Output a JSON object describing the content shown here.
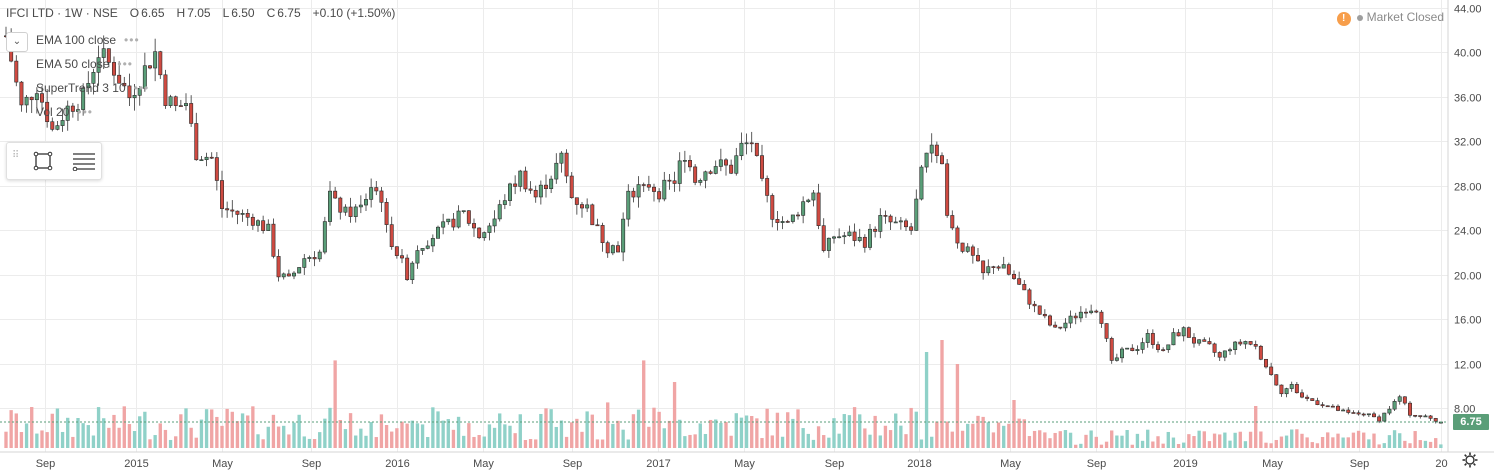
{
  "header": {
    "symbol": "IFCI LTD · 1W · NSE",
    "open_label": "O",
    "open": "6.65",
    "high_label": "H",
    "high": "7.05",
    "low_label": "L",
    "low": "6.50",
    "close_label": "C",
    "close": "6.75",
    "change": "+0.10 (+1.50%)"
  },
  "indicators": [
    {
      "label": "EMA 100 close"
    },
    {
      "label": "EMA 50 close"
    },
    {
      "label": "SuperTrend 3 10"
    },
    {
      "label": "Vol 20"
    }
  ],
  "status": {
    "warning_icon": "!",
    "text": "Market Closed"
  },
  "last_price_tag": "6.75",
  "colors": {
    "up": "#5a9e78",
    "down": "#cf4a41",
    "vol_up": "#8fd1c8",
    "vol_down": "#f0a5a5",
    "grid": "#ececec"
  },
  "icons": [
    "chevron-down-icon",
    "drag-grip-icon",
    "rectangle-tool-icon",
    "lines-tool-icon",
    "warning-icon",
    "settings-icon"
  ],
  "chart_data": {
    "type": "candlestick",
    "title": "IFCI LTD · 1W · NSE",
    "interval": "weekly",
    "y_ticks": [
      "44.00",
      "40.00",
      "36.00",
      "32.00",
      "28.00",
      "24.00",
      "20.00",
      "16.00",
      "12.00",
      "8.00"
    ],
    "ylim": [
      4.5,
      44
    ],
    "x_ticks": [
      "Sep",
      "2015",
      "May",
      "Sep",
      "2016",
      "May",
      "Sep",
      "2017",
      "May",
      "Sep",
      "2018",
      "May",
      "Sep",
      "2019",
      "May",
      "Sep",
      "20"
    ],
    "price_path": [
      [
        0,
        41.5
      ],
      [
        3,
        35
      ],
      [
        6,
        37
      ],
      [
        9,
        33
      ],
      [
        12,
        35
      ],
      [
        15,
        36
      ],
      [
        18,
        40
      ],
      [
        21,
        38.5
      ],
      [
        24,
        36
      ],
      [
        27,
        38.5
      ],
      [
        29,
        40
      ],
      [
        31,
        36
      ],
      [
        33,
        35
      ],
      [
        35,
        35.5
      ],
      [
        37,
        31
      ],
      [
        40,
        30.5
      ],
      [
        42,
        26
      ],
      [
        45,
        25.5
      ],
      [
        48,
        25
      ],
      [
        51,
        24
      ],
      [
        53,
        20
      ],
      [
        55,
        19.5
      ],
      [
        58,
        21.5
      ],
      [
        61,
        22
      ],
      [
        63,
        27
      ],
      [
        66,
        25.5
      ],
      [
        69,
        26
      ],
      [
        71,
        28
      ],
      [
        73,
        27
      ],
      [
        74,
        24
      ],
      [
        76,
        22
      ],
      [
        78,
        20
      ],
      [
        80,
        22.5
      ],
      [
        83,
        23.5
      ],
      [
        86,
        24.5
      ],
      [
        89,
        25.5
      ],
      [
        92,
        23.5
      ],
      [
        95,
        25
      ],
      [
        97,
        27
      ],
      [
        100,
        29
      ],
      [
        103,
        27
      ],
      [
        106,
        29
      ],
      [
        108,
        30.5
      ],
      [
        110,
        27
      ],
      [
        113,
        26
      ],
      [
        115,
        24
      ],
      [
        117,
        22.5
      ],
      [
        119,
        22.5
      ],
      [
        121,
        27
      ],
      [
        124,
        28.5
      ],
      [
        127,
        27.5
      ],
      [
        130,
        28.5
      ],
      [
        132,
        31
      ],
      [
        134,
        28.5
      ],
      [
        136,
        29.5
      ],
      [
        138,
        30
      ],
      [
        141,
        29.5
      ],
      [
        143,
        31.5
      ],
      [
        145,
        32
      ],
      [
        147,
        28
      ],
      [
        149,
        25.5
      ],
      [
        152,
        24.5
      ],
      [
        155,
        26.5
      ],
      [
        157,
        27.5
      ],
      [
        159,
        22
      ],
      [
        161,
        23.5
      ],
      [
        164,
        23.5
      ],
      [
        167,
        23
      ],
      [
        170,
        25
      ],
      [
        173,
        24.5
      ],
      [
        176,
        24
      ],
      [
        178,
        29
      ],
      [
        180,
        32
      ],
      [
        182,
        30
      ],
      [
        183,
        25
      ],
      [
        185,
        23
      ],
      [
        188,
        21.5
      ],
      [
        190,
        20
      ],
      [
        192,
        21
      ],
      [
        194,
        20.5
      ],
      [
        197,
        19
      ],
      [
        200,
        17
      ],
      [
        202,
        16
      ],
      [
        204,
        15
      ],
      [
        207,
        16
      ],
      [
        210,
        17
      ],
      [
        212,
        17
      ],
      [
        213,
        16
      ],
      [
        215,
        12
      ],
      [
        217,
        13
      ],
      [
        220,
        13.5
      ],
      [
        222,
        14.5
      ],
      [
        225,
        13
      ],
      [
        227,
        14.5
      ],
      [
        229,
        15
      ],
      [
        231,
        14
      ],
      [
        234,
        13.5
      ],
      [
        236,
        12.5
      ],
      [
        238,
        13.5
      ],
      [
        241,
        14
      ],
      [
        243,
        13.5
      ],
      [
        246,
        11
      ],
      [
        248,
        9.5
      ],
      [
        250,
        10
      ],
      [
        252,
        9
      ],
      [
        255,
        8.5
      ],
      [
        258,
        8
      ],
      [
        261,
        7.5
      ],
      [
        264,
        7.5
      ],
      [
        267,
        7
      ],
      [
        269,
        8
      ],
      [
        271,
        9
      ],
      [
        273,
        7.5
      ],
      [
        276,
        7.2
      ],
      [
        279,
        6.75
      ]
    ],
    "volume_spikes": [
      {
        "week": 64,
        "height": 0.73
      },
      {
        "week": 124,
        "height": 0.73
      },
      {
        "week": 130,
        "height": 0.55
      },
      {
        "week": 117,
        "height": 0.38
      },
      {
        "week": 179,
        "height": 0.8
      },
      {
        "week": 182,
        "height": 0.9
      },
      {
        "week": 185,
        "height": 0.7
      },
      {
        "week": 243,
        "height": 0.35
      },
      {
        "week": 196,
        "height": 0.4
      }
    ]
  }
}
